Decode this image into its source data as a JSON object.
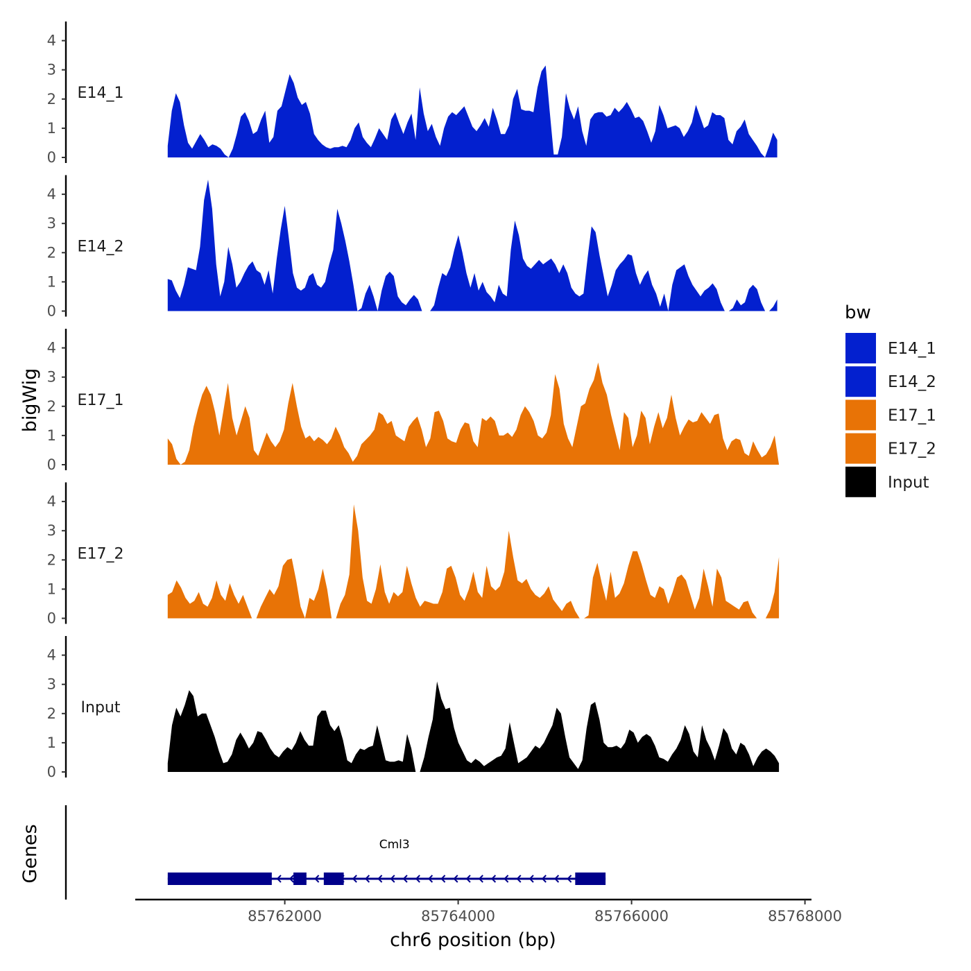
{
  "chart_data": {
    "type": "area",
    "ylabel": "bigWig",
    "xlabel": "chr6 position (bp)",
    "genes_label": "Genes",
    "ylim": [
      0,
      4.6
    ],
    "y_ticks": [
      0,
      1,
      2,
      3,
      4
    ],
    "xlim": [
      85760000,
      85768300
    ],
    "x_ticks": [
      85762000,
      85764000,
      85766000,
      85768000
    ],
    "x_tick_labels": [
      "85762000",
      "85764000",
      "85766000",
      "85768000"
    ],
    "legend": {
      "title": "bw",
      "entries": [
        {
          "label": "E14_1",
          "color": "#0320CF"
        },
        {
          "label": "E14_2",
          "color": "#0320CF"
        },
        {
          "label": "E17_1",
          "color": "#E87306"
        },
        {
          "label": "E17_2",
          "color": "#E87306"
        },
        {
          "label": "Input",
          "color": "#000000"
        }
      ]
    },
    "series": [
      {
        "name": "E14_1",
        "color": "#0320CF",
        "x_start": 85760650,
        "x_end": 85767680,
        "values": [
          0.4,
          1.6,
          2.2,
          1.9,
          1.1,
          0.5,
          0.3,
          0.55,
          0.8,
          0.6,
          0.35,
          0.45,
          0.4,
          0.3,
          0.1,
          0.0,
          0.3,
          0.8,
          1.4,
          1.55,
          1.25,
          0.8,
          0.9,
          1.3,
          1.6,
          0.5,
          0.7,
          1.6,
          1.75,
          2.3,
          2.85,
          2.55,
          2.05,
          1.8,
          1.9,
          1.5,
          0.8,
          0.6,
          0.45,
          0.35,
          0.3,
          0.35,
          0.35,
          0.4,
          0.35,
          0.6,
          1.0,
          1.2,
          0.7,
          0.5,
          0.35,
          0.65,
          1.0,
          0.8,
          0.6,
          1.3,
          1.55,
          1.15,
          0.8,
          1.2,
          1.5,
          0.6,
          2.4,
          1.5,
          0.9,
          1.15,
          0.7,
          0.4,
          1.0,
          1.4,
          1.55,
          1.45,
          1.6,
          1.75,
          1.4,
          1.05,
          0.9,
          1.1,
          1.35,
          1.05,
          1.7,
          1.3,
          0.8,
          0.8,
          1.1,
          2.0,
          2.35,
          1.65,
          1.6,
          1.6,
          1.55,
          2.4,
          2.95,
          3.15,
          1.6,
          0.1,
          0.1,
          0.7,
          2.2,
          1.65,
          1.3,
          1.75,
          0.9,
          0.4,
          1.3,
          1.5,
          1.55,
          1.55,
          1.4,
          1.45,
          1.7,
          1.55,
          1.7,
          1.9,
          1.65,
          1.35,
          1.4,
          1.25,
          0.9,
          0.5,
          0.9,
          1.8,
          1.45,
          1.0,
          1.05,
          1.1,
          1.0,
          0.7,
          0.9,
          1.2,
          1.8,
          1.4,
          1.0,
          1.1,
          1.55,
          1.45,
          1.45,
          1.35,
          0.6,
          0.45,
          0.9,
          1.05,
          1.3,
          0.8,
          0.6,
          0.4,
          0.15,
          0.0,
          0.4,
          0.85,
          0.6
        ]
      },
      {
        "name": "E14_2",
        "color": "#0320CF",
        "x_start": 85760650,
        "x_end": 85767680,
        "values": [
          1.1,
          1.05,
          0.7,
          0.45,
          0.9,
          1.5,
          1.45,
          1.4,
          2.2,
          3.8,
          4.5,
          3.5,
          1.6,
          0.5,
          1.0,
          2.2,
          1.6,
          0.8,
          1.0,
          1.3,
          1.55,
          1.7,
          1.4,
          1.3,
          0.9,
          1.4,
          0.6,
          1.8,
          2.8,
          3.6,
          2.5,
          1.3,
          0.8,
          0.7,
          0.8,
          1.2,
          1.3,
          0.9,
          0.8,
          1.0,
          1.6,
          2.1,
          3.5,
          3.0,
          2.4,
          1.7,
          0.9,
          0.0,
          0.1,
          0.6,
          0.9,
          0.5,
          0.0,
          0.7,
          1.2,
          1.35,
          1.2,
          0.5,
          0.3,
          0.2,
          0.4,
          0.55,
          0.4,
          0.0,
          0.0,
          0.0,
          0.2,
          0.8,
          1.3,
          1.2,
          1.5,
          2.1,
          2.6,
          2.0,
          1.3,
          0.8,
          1.3,
          0.7,
          1.0,
          0.65,
          0.5,
          0.3,
          0.9,
          0.6,
          0.5,
          2.1,
          3.1,
          2.6,
          1.8,
          1.55,
          1.45,
          1.6,
          1.75,
          1.6,
          1.7,
          1.8,
          1.6,
          1.3,
          1.6,
          1.3,
          0.8,
          0.6,
          0.5,
          0.6,
          1.8,
          2.9,
          2.7,
          1.9,
          1.2,
          0.5,
          0.9,
          1.4,
          1.6,
          1.75,
          1.95,
          1.9,
          1.3,
          0.9,
          1.2,
          1.4,
          0.9,
          0.6,
          0.15,
          0.6,
          0.0,
          0.9,
          1.4,
          1.5,
          1.6,
          1.2,
          0.9,
          0.7,
          0.5,
          0.7,
          0.8,
          0.95,
          0.75,
          0.3,
          0.0,
          0.0,
          0.1,
          0.4,
          0.2,
          0.3,
          0.75,
          0.9,
          0.75,
          0.3,
          0.0,
          0.0,
          0.15,
          0.4
        ]
      },
      {
        "name": "E17_1",
        "color": "#E87306",
        "x_start": 85760650,
        "x_end": 85767700,
        "values": [
          0.9,
          0.7,
          0.2,
          0.0,
          0.1,
          0.5,
          1.3,
          1.9,
          2.4,
          2.7,
          2.4,
          1.8,
          1.0,
          1.9,
          2.8,
          1.6,
          1.0,
          1.5,
          2.0,
          1.6,
          0.5,
          0.3,
          0.7,
          1.1,
          0.8,
          0.6,
          0.8,
          1.2,
          2.1,
          2.8,
          2.0,
          1.3,
          0.9,
          1.0,
          0.8,
          0.95,
          0.85,
          0.7,
          0.9,
          1.3,
          1.0,
          0.6,
          0.4,
          0.1,
          0.3,
          0.7,
          0.85,
          1.0,
          1.2,
          1.8,
          1.7,
          1.4,
          1.5,
          1.0,
          0.9,
          0.8,
          1.3,
          1.5,
          1.65,
          1.2,
          0.6,
          0.9,
          1.8,
          1.85,
          1.5,
          0.9,
          0.8,
          0.75,
          1.2,
          1.45,
          1.4,
          0.8,
          0.6,
          1.6,
          1.5,
          1.65,
          1.5,
          1.0,
          1.0,
          1.1,
          0.95,
          1.2,
          1.7,
          2.0,
          1.8,
          1.5,
          1.0,
          0.9,
          1.1,
          1.7,
          3.1,
          2.6,
          1.4,
          0.9,
          0.6,
          1.3,
          2.0,
          2.1,
          2.6,
          2.9,
          3.5,
          2.8,
          2.4,
          1.7,
          1.1,
          0.5,
          1.8,
          1.6,
          0.6,
          1.0,
          1.85,
          1.6,
          0.7,
          1.3,
          1.8,
          1.25,
          1.6,
          2.4,
          1.6,
          1.0,
          1.3,
          1.55,
          1.45,
          1.5,
          1.8,
          1.6,
          1.4,
          1.7,
          1.75,
          0.9,
          0.5,
          0.8,
          0.9,
          0.85,
          0.4,
          0.3,
          0.8,
          0.5,
          0.25,
          0.35,
          0.6,
          1.0,
          0.0
        ]
      },
      {
        "name": "E17_2",
        "color": "#E87306",
        "x_start": 85760650,
        "x_end": 85767700,
        "values": [
          0.8,
          0.9,
          1.3,
          1.05,
          0.7,
          0.5,
          0.6,
          0.9,
          0.5,
          0.4,
          0.7,
          1.3,
          0.8,
          0.6,
          1.2,
          0.8,
          0.5,
          0.8,
          0.4,
          0.0,
          0.0,
          0.4,
          0.7,
          1.0,
          0.8,
          1.1,
          1.8,
          2.0,
          2.05,
          1.3,
          0.4,
          0.0,
          0.7,
          0.6,
          1.0,
          1.7,
          1.0,
          0.0,
          0.0,
          0.5,
          0.8,
          1.5,
          3.9,
          3.0,
          1.4,
          0.6,
          0.5,
          1.0,
          1.85,
          0.9,
          0.5,
          0.9,
          0.75,
          0.9,
          1.8,
          1.2,
          0.7,
          0.4,
          0.6,
          0.55,
          0.5,
          0.5,
          0.9,
          1.7,
          1.8,
          1.4,
          0.8,
          0.6,
          1.0,
          1.6,
          0.9,
          0.7,
          1.8,
          1.1,
          0.95,
          1.1,
          1.6,
          3.0,
          2.1,
          1.3,
          1.2,
          1.35,
          1.0,
          0.8,
          0.7,
          0.85,
          1.1,
          0.65,
          0.45,
          0.25,
          0.5,
          0.6,
          0.25,
          0.0,
          0.0,
          0.1,
          1.4,
          1.9,
          1.2,
          0.6,
          1.6,
          0.7,
          0.85,
          1.2,
          1.8,
          2.3,
          2.3,
          1.85,
          1.3,
          0.8,
          0.7,
          1.1,
          1.0,
          0.5,
          0.9,
          1.4,
          1.5,
          1.3,
          0.8,
          0.3,
          0.7,
          1.7,
          1.1,
          0.4,
          1.7,
          1.4,
          0.6,
          0.5,
          0.4,
          0.3,
          0.55,
          0.6,
          0.2,
          0.0,
          0.0,
          0.0,
          0.3,
          0.9,
          2.1
        ]
      },
      {
        "name": "Input",
        "color": "#000000",
        "x_start": 85760650,
        "x_end": 85767700,
        "values": [
          0.3,
          1.6,
          2.2,
          1.9,
          2.3,
          2.8,
          2.6,
          1.9,
          2.0,
          2.0,
          1.6,
          1.2,
          0.7,
          0.3,
          0.35,
          0.6,
          1.1,
          1.35,
          1.1,
          0.8,
          1.0,
          1.4,
          1.35,
          1.1,
          0.8,
          0.6,
          0.5,
          0.7,
          0.85,
          0.75,
          1.0,
          1.4,
          1.1,
          0.9,
          0.9,
          1.9,
          2.1,
          2.1,
          1.6,
          1.4,
          1.6,
          1.1,
          0.4,
          0.3,
          0.6,
          0.8,
          0.75,
          0.85,
          0.9,
          1.6,
          1.0,
          0.4,
          0.35,
          0.35,
          0.4,
          0.35,
          1.3,
          0.8,
          0.0,
          0.0,
          0.5,
          1.2,
          1.8,
          3.1,
          2.5,
          2.15,
          2.2,
          1.5,
          1.0,
          0.7,
          0.4,
          0.3,
          0.45,
          0.35,
          0.2,
          0.3,
          0.4,
          0.5,
          0.55,
          0.8,
          1.7,
          1.0,
          0.3,
          0.4,
          0.5,
          0.7,
          0.9,
          0.8,
          1.0,
          1.3,
          1.6,
          2.2,
          2.0,
          1.2,
          0.5,
          0.3,
          0.1,
          0.4,
          1.5,
          2.3,
          2.4,
          1.8,
          1.0,
          0.85,
          0.85,
          0.9,
          0.8,
          1.0,
          1.45,
          1.35,
          1.0,
          1.2,
          1.3,
          1.2,
          0.9,
          0.5,
          0.45,
          0.35,
          0.6,
          0.8,
          1.1,
          1.6,
          1.3,
          0.7,
          0.5,
          1.6,
          1.1,
          0.8,
          0.4,
          0.9,
          1.5,
          1.3,
          0.8,
          0.6,
          1.0,
          0.9,
          0.6,
          0.2,
          0.5,
          0.7,
          0.8,
          0.7,
          0.55,
          0.3
        ]
      }
    ],
    "genes": {
      "name": "Cml3",
      "color": "#00008B",
      "strand": "-",
      "start": 85760650,
      "end": 85765700,
      "exons": [
        [
          85760650,
          85761850
        ],
        [
          85762100,
          85762250
        ],
        [
          85762450,
          85762680
        ],
        [
          85765350,
          85765700
        ]
      ]
    }
  }
}
